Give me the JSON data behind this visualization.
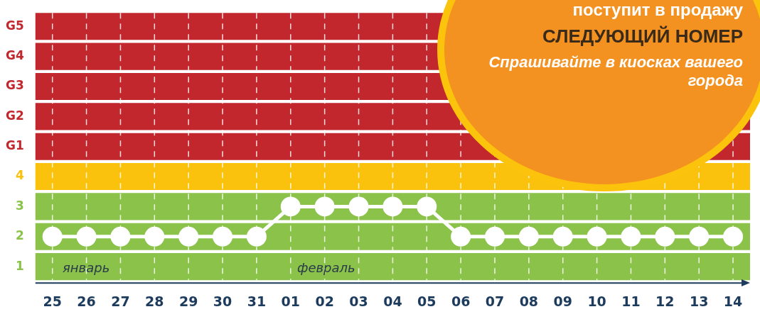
{
  "chart_data": {
    "type": "line",
    "categories": [
      "25",
      "26",
      "27",
      "28",
      "29",
      "30",
      "31",
      "01",
      "02",
      "03",
      "04",
      "05",
      "06",
      "07",
      "08",
      "09",
      "10",
      "11",
      "12",
      "13",
      "14"
    ],
    "series": [
      {
        "color": "#ffffff",
        "values": [
          2,
          2,
          2,
          2,
          2,
          2,
          2,
          3,
          3,
          3,
          3,
          3,
          2,
          2,
          2,
          2,
          2,
          2,
          2,
          2,
          2
        ]
      }
    ],
    "ylim": [
      0.55,
      9.45
    ],
    "yticks": [
      {
        "value": 1,
        "label": "1"
      },
      {
        "value": 2,
        "label": "2"
      },
      {
        "value": 3,
        "label": "3"
      },
      {
        "value": 4,
        "label": "4"
      },
      {
        "value": 5,
        "label": "G1"
      },
      {
        "value": 6,
        "label": "G2"
      },
      {
        "value": 7,
        "label": "G3"
      },
      {
        "value": 8,
        "label": "G4"
      },
      {
        "value": 9,
        "label": "G5"
      }
    ],
    "bands": [
      {
        "axis": "y",
        "from": 0.55,
        "to": 1.45,
        "color": "#8bc34a"
      },
      {
        "axis": "y",
        "from": 1.55,
        "to": 2.45,
        "color": "#8bc34a"
      },
      {
        "axis": "y",
        "from": 2.55,
        "to": 3.45,
        "color": "#8bc34a"
      },
      {
        "axis": "y",
        "from": 3.55,
        "to": 4.45,
        "color": "#fbc20d"
      },
      {
        "axis": "y",
        "from": 4.55,
        "to": 5.45,
        "color": "#c1272d"
      },
      {
        "axis": "y",
        "from": 5.55,
        "to": 6.45,
        "color": "#c1272d"
      },
      {
        "axis": "y",
        "from": 6.55,
        "to": 7.45,
        "color": "#c1272d"
      },
      {
        "axis": "y",
        "from": 7.55,
        "to": 8.45,
        "color": "#c1272d"
      },
      {
        "axis": "y",
        "from": 8.55,
        "to": 9.45,
        "color": "#c1272d"
      }
    ],
    "annotations": [
      "январь",
      "февраль",
      "поступит в продажу",
      "СЛЕДУЮЩИЙ НОМЕР",
      "Спрашивайте в киосках вашего города"
    ],
    "grid": "x",
    "marker": "circle",
    "line_style": "solid",
    "legend": false
  }
}
